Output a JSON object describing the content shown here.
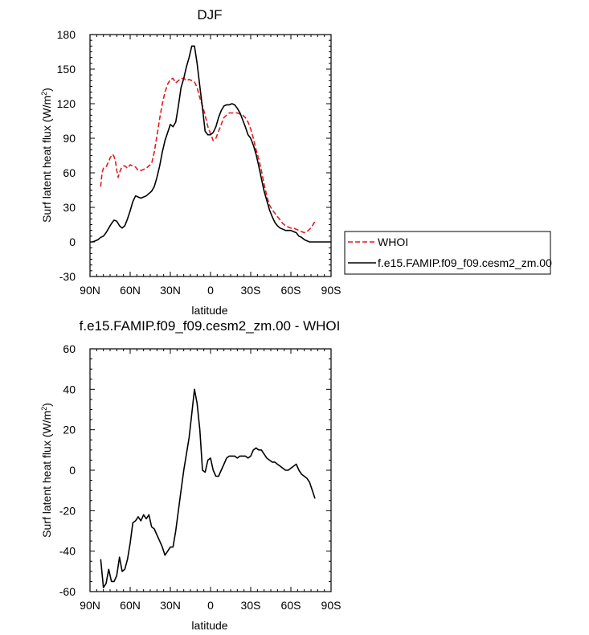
{
  "figure_title": "DJF",
  "legend": {
    "entries": [
      {
        "label": "WHOI",
        "color": "#e41a1c",
        "dash": true
      },
      {
        "label": "f.e15.FAMIP.f09_f09.cesm2_zm.00",
        "color": "#000000",
        "dash": false
      }
    ]
  },
  "chart_data": [
    {
      "type": "line",
      "title": "DJF",
      "xlabel": "latitude",
      "ylabel": "Surf latent heat flux (W/m²)",
      "ylabel_main": "Surf latent heat flux (W/m",
      "ylabel_sup": "2",
      "ylabel_end": ")",
      "xlim": [
        90,
        -90
      ],
      "ylim": [
        -30,
        180
      ],
      "xticks": [
        90,
        60,
        30,
        0,
        -30,
        -60,
        -90
      ],
      "xtick_labels": [
        "90N",
        "60N",
        "30N",
        "0",
        "30S",
        "60S",
        "90S"
      ],
      "yticks": [
        -30,
        0,
        30,
        60,
        90,
        120,
        150,
        180
      ],
      "ytick_labels": [
        "-30",
        "0",
        "30",
        "60",
        "90",
        "120",
        "150",
        "180"
      ],
      "series": [
        {
          "name": "WHOI",
          "color": "#e41a1c",
          "dash": true,
          "x": [
            82,
            81,
            80,
            78,
            76,
            75,
            73,
            72,
            71,
            70,
            69,
            68,
            67,
            66,
            65,
            64,
            62,
            60,
            58,
            56,
            54,
            52,
            50,
            48,
            46,
            44,
            42,
            40,
            38,
            36,
            34,
            32,
            30,
            28,
            26,
            24,
            22,
            20,
            18,
            16,
            14,
            12,
            10,
            8,
            6,
            4,
            2,
            0,
            -2,
            -4,
            -6,
            -8,
            -10,
            -12,
            -14,
            -16,
            -18,
            -20,
            -22,
            -24,
            -26,
            -28,
            -30,
            -32,
            -34,
            -36,
            -38,
            -40,
            -42,
            -44,
            -46,
            -48,
            -50,
            -52,
            -54,
            -56,
            -58,
            -60,
            -62,
            -64,
            -66,
            -68,
            -70,
            -72,
            -74,
            -76,
            -78
          ],
          "y": [
            48,
            60,
            64,
            65,
            70,
            73,
            76,
            74,
            70,
            62,
            56,
            60,
            63,
            65,
            66,
            66,
            64,
            67,
            66,
            65,
            62,
            62,
            63,
            64,
            66,
            68,
            78,
            92,
            107,
            120,
            130,
            137,
            141,
            142,
            138,
            140,
            142,
            142,
            140,
            141,
            140,
            139,
            134,
            125,
            118,
            110,
            100,
            94,
            88,
            90,
            96,
            102,
            108,
            110,
            112,
            112,
            112,
            112,
            111,
            110,
            108,
            104,
            98,
            90,
            80,
            72,
            62,
            50,
            40,
            32,
            28,
            25,
            22,
            19,
            16,
            14,
            13,
            12,
            12,
            11,
            10,
            9,
            8,
            9,
            11,
            14,
            18
          ]
        },
        {
          "name": "f.e15.FAMIP.f09_f09.cesm2_zm.00",
          "color": "#000000",
          "dash": false,
          "x": [
            90,
            88,
            86,
            84,
            82,
            80,
            78,
            76,
            74,
            72,
            70,
            68,
            66,
            64,
            62,
            60,
            58,
            56,
            54,
            52,
            50,
            48,
            46,
            44,
            42,
            40,
            38,
            36,
            34,
            32,
            30,
            28,
            26,
            24,
            22,
            20,
            18,
            16,
            14,
            12,
            10,
            8,
            6,
            4,
            2,
            0,
            -2,
            -4,
            -6,
            -8,
            -10,
            -12,
            -14,
            -16,
            -18,
            -20,
            -22,
            -24,
            -26,
            -28,
            -30,
            -32,
            -34,
            -36,
            -38,
            -40,
            -42,
            -44,
            -46,
            -48,
            -50,
            -52,
            -54,
            -56,
            -58,
            -60,
            -62,
            -64,
            -66,
            -68,
            -70,
            -72,
            -74,
            -76,
            -78,
            -80,
            -82,
            -84,
            -86,
            -88,
            -90
          ],
          "y": [
            0,
            0,
            1,
            2,
            4,
            5,
            8,
            12,
            16,
            19,
            18,
            14,
            12,
            14,
            20,
            27,
            35,
            40,
            39,
            38,
            39,
            40,
            42,
            44,
            48,
            56,
            66,
            78,
            88,
            95,
            102,
            100,
            104,
            118,
            134,
            142,
            152,
            160,
            170,
            170,
            155,
            135,
            116,
            96,
            93,
            93,
            95,
            100,
            108,
            114,
            118,
            119,
            119,
            120,
            119,
            116,
            112,
            106,
            100,
            93,
            90,
            84,
            76,
            66,
            55,
            44,
            36,
            28,
            22,
            17,
            14,
            12,
            11,
            10,
            10,
            10,
            9,
            8,
            5,
            4,
            2,
            1,
            0,
            0,
            0,
            0,
            0,
            0,
            0,
            0,
            0
          ]
        }
      ]
    },
    {
      "type": "line",
      "title": "f.e15.FAMIP.f09_f09.cesm2_zm.00 - WHOI",
      "xlabel": "latitude",
      "ylabel": "Surf latent heat flux (W/m²)",
      "ylabel_main": "Surf latent heat flux (W/m",
      "ylabel_sup": "2",
      "ylabel_end": ")",
      "xlim": [
        90,
        -90
      ],
      "ylim": [
        -60,
        60
      ],
      "xticks": [
        90,
        60,
        30,
        0,
        -30,
        -60,
        -90
      ],
      "xtick_labels": [
        "90N",
        "60N",
        "30N",
        "0",
        "30S",
        "60S",
        "90S"
      ],
      "yticks": [
        -60,
        -40,
        -20,
        0,
        20,
        40,
        60
      ],
      "ytick_labels": [
        "-60",
        "-40",
        "-20",
        "0",
        "20",
        "40",
        "60"
      ],
      "series": [
        {
          "name": "f.e15.FAMIP.f09_f09.cesm2_zm.00 - WHOI",
          "color": "#000000",
          "dash": false,
          "x": [
            82,
            80,
            78,
            76,
            74,
            72,
            70,
            68,
            66,
            64,
            62,
            60,
            58,
            56,
            54,
            52,
            50,
            48,
            46,
            44,
            42,
            40,
            38,
            36,
            34,
            32,
            30,
            28,
            26,
            24,
            22,
            20,
            18,
            16,
            14,
            12,
            10,
            8,
            6,
            4,
            2,
            0,
            -2,
            -4,
            -6,
            -8,
            -10,
            -12,
            -14,
            -16,
            -18,
            -20,
            -22,
            -24,
            -26,
            -28,
            -30,
            -32,
            -34,
            -36,
            -38,
            -40,
            -42,
            -44,
            -46,
            -48,
            -50,
            -52,
            -54,
            -56,
            -58,
            -60,
            -62,
            -64,
            -66,
            -68,
            -70,
            -72,
            -74,
            -76,
            -78
          ],
          "y": [
            -44,
            -58,
            -56,
            -49,
            -55,
            -55,
            -52,
            -43,
            -50,
            -49,
            -44,
            -36,
            -26,
            -25,
            -23,
            -25,
            -22,
            -24,
            -22,
            -28,
            -29,
            -32,
            -35,
            -38,
            -42,
            -40,
            -38,
            -38,
            -30,
            -20,
            -10,
            0,
            8,
            16,
            28,
            40,
            33,
            20,
            0,
            -1,
            5,
            6,
            0,
            -3,
            -3,
            0,
            3,
            6,
            7,
            7,
            7,
            6,
            7,
            7,
            7,
            6,
            7,
            10,
            11,
            10,
            10,
            8,
            6,
            5,
            4,
            4,
            3,
            2,
            1,
            0,
            0,
            1,
            2,
            3,
            0,
            -2,
            -3,
            -4,
            -6,
            -10,
            -14
          ]
        }
      ]
    }
  ]
}
